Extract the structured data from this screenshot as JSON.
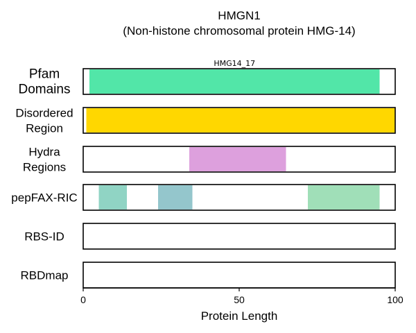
{
  "chart_data": {
    "type": "domain-track",
    "title": "HMGN1",
    "subtitle": "(Non-histone chromosomal protein HMG-14)",
    "xlabel": "Protein Length",
    "xlim": [
      0,
      100
    ],
    "xticks": [
      0,
      50,
      100
    ],
    "tracks": [
      {
        "name": "Pfam\nDomains",
        "segments": [
          {
            "start": 2,
            "end": 95,
            "color": "#52e6a8",
            "label": "HMG14_17"
          }
        ]
      },
      {
        "name": "Disordered\nRegion",
        "segments": [
          {
            "start": 1,
            "end": 100,
            "color": "#ffd700"
          }
        ]
      },
      {
        "name": "Hydra\nRegions",
        "segments": [
          {
            "start": 34,
            "end": 65,
            "color": "#dda0dd"
          }
        ]
      },
      {
        "name": "pepFAX-RIC",
        "segments": [
          {
            "start": 5,
            "end": 14,
            "color": "#90d4c4"
          },
          {
            "start": 24,
            "end": 35,
            "color": "#94c6cc"
          },
          {
            "start": 72,
            "end": 95,
            "color": "#a0dfb8"
          }
        ]
      },
      {
        "name": "RBS-ID",
        "segments": []
      },
      {
        "name": "RBDmap",
        "segments": []
      }
    ]
  }
}
